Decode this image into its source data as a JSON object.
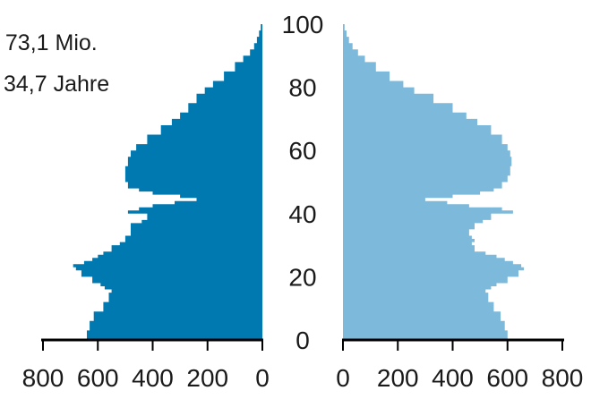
{
  "annotations": {
    "population": ": 73,1 Mio.",
    "median_age": "34,7 Jahre"
  },
  "colors": {
    "left_series": "#0079b1",
    "right_series": "#7db9da",
    "axis": "#000000",
    "text": "#1a1a1a"
  },
  "chart_data": {
    "type": "area",
    "subtype": "population-pyramid",
    "title": "",
    "xlabel": "",
    "ylabel": "",
    "age_ticks": [
      "0",
      "20",
      "40",
      "60",
      "80",
      "100"
    ],
    "age_range": [
      0,
      100
    ],
    "left_x_ticks": [
      "800",
      "600",
      "400",
      "200",
      "0"
    ],
    "right_x_ticks": [
      "0",
      "200",
      "400",
      "600",
      "800"
    ],
    "xlim": [
      0,
      800
    ],
    "grid": false,
    "series": [
      {
        "side": "left",
        "ages": [
          0,
          3,
          6,
          9,
          12,
          15,
          16,
          17,
          18,
          20,
          22,
          23,
          24,
          25,
          26,
          27,
          28,
          30,
          31,
          32,
          33,
          35,
          37,
          38,
          40,
          41,
          42,
          43,
          44,
          45,
          46,
          47,
          48,
          50,
          52,
          55,
          58,
          60,
          62,
          65,
          68,
          70,
          72,
          75,
          78,
          80,
          82,
          85,
          88,
          90,
          92,
          94,
          96,
          98,
          100
        ],
        "values": [
          640,
          630,
          615,
          580,
          560,
          550,
          575,
          590,
          620,
          660,
          680,
          690,
          650,
          620,
          600,
          580,
          550,
          520,
          500,
          500,
          480,
          480,
          440,
          420,
          490,
          450,
          400,
          320,
          240,
          300,
          400,
          450,
          490,
          500,
          500,
          490,
          480,
          460,
          420,
          370,
          330,
          300,
          270,
          240,
          210,
          180,
          140,
          100,
          70,
          45,
          30,
          20,
          12,
          6,
          0
        ]
      },
      {
        "side": "right",
        "ages": [
          0,
          3,
          6,
          9,
          12,
          15,
          16,
          17,
          18,
          20,
          22,
          23,
          24,
          25,
          26,
          27,
          28,
          30,
          31,
          32,
          33,
          35,
          37,
          38,
          40,
          41,
          42,
          43,
          44,
          45,
          46,
          47,
          48,
          50,
          52,
          55,
          58,
          60,
          62,
          65,
          68,
          70,
          72,
          75,
          78,
          80,
          82,
          85,
          88,
          90,
          92,
          94,
          96,
          98,
          100
        ],
        "values": [
          600,
          590,
          575,
          550,
          530,
          520,
          540,
          560,
          600,
          640,
          660,
          650,
          620,
          590,
          560,
          520,
          480,
          470,
          480,
          470,
          460,
          480,
          510,
          540,
          620,
          580,
          460,
          380,
          300,
          400,
          500,
          550,
          580,
          600,
          610,
          615,
          610,
          600,
          580,
          540,
          490,
          450,
          400,
          330,
          260,
          220,
          170,
          120,
          80,
          55,
          35,
          22,
          13,
          6,
          0
        ]
      }
    ]
  }
}
